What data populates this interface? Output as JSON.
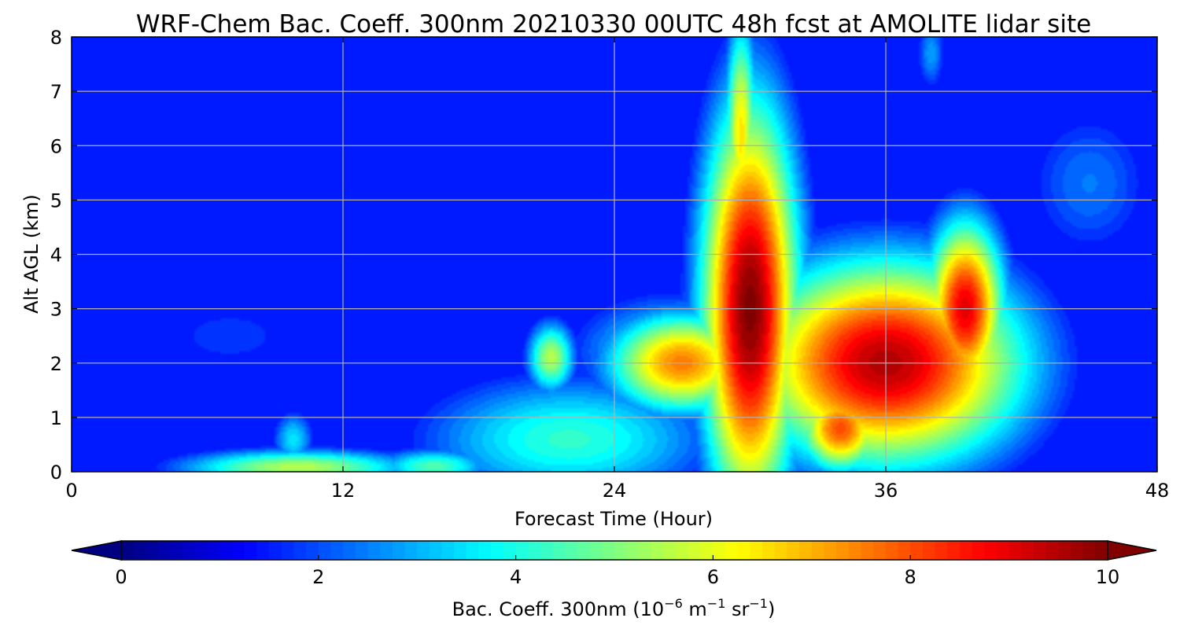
{
  "chart_data": {
    "type": "heatmap",
    "title": "WRF-Chem Bac. Coeff. 300nm  20210330 00UTC 48h fcst at AMOLITE lidar site",
    "xlabel": "Forecast Time (Hour)",
    "ylabel": "Alt AGL (km)",
    "xlim": [
      0,
      48
    ],
    "ylim": [
      0,
      8
    ],
    "x_ticks": [
      0,
      12,
      24,
      36,
      48
    ],
    "y_ticks": [
      0,
      1,
      2,
      3,
      4,
      5,
      6,
      7,
      8
    ],
    "grid": true,
    "colormap": "jet",
    "colorbar": {
      "label_main": "Bac. Coeff. 300nm  (10",
      "label_exp1": "−6",
      "label_mid": " m",
      "label_exp2": "−1",
      "label_mid2": " sr",
      "label_exp3": "−1",
      "label_end": ")",
      "vmin": 0,
      "vmax": 10,
      "ticks": [
        0,
        2,
        4,
        6,
        8,
        10
      ],
      "extend": "both",
      "orientation": "horizontal",
      "position": "bottom"
    },
    "features": [
      {
        "x": 30,
        "y": 3.0,
        "sx": 1.6,
        "sy": 2.8,
        "v": 10
      },
      {
        "x": 29.6,
        "y": 6.2,
        "sx": 0.55,
        "sy": 1.6,
        "v": 6.5
      },
      {
        "x": 29.5,
        "y": 7.4,
        "sx": 0.4,
        "sy": 0.35,
        "v": 3.0
      },
      {
        "x": 36,
        "y": 2.0,
        "sx": 4.5,
        "sy": 1.4,
        "v": 9.5
      },
      {
        "x": 39.5,
        "y": 3.0,
        "sx": 1.3,
        "sy": 1.2,
        "v": 9.0
      },
      {
        "x": 34,
        "y": 0.8,
        "sx": 1.4,
        "sy": 0.6,
        "v": 8.0
      },
      {
        "x": 27,
        "y": 2.0,
        "sx": 2.5,
        "sy": 0.7,
        "v": 7.5
      },
      {
        "x": 26.5,
        "y": 2.2,
        "sx": 3.2,
        "sy": 0.8,
        "v": 4.0
      },
      {
        "x": 21.2,
        "y": 2.1,
        "sx": 0.8,
        "sy": 0.5,
        "v": 5.5
      },
      {
        "x": 22,
        "y": 0.6,
        "sx": 5.0,
        "sy": 0.9,
        "v": 4.2
      },
      {
        "x": 10,
        "y": 0.08,
        "sx": 4.0,
        "sy": 0.25,
        "v": 5.5
      },
      {
        "x": 16,
        "y": 0.1,
        "sx": 2.0,
        "sy": 0.25,
        "v": 4.5
      },
      {
        "x": 9.8,
        "y": 0.6,
        "sx": 0.7,
        "sy": 0.4,
        "v": 3.5
      },
      {
        "x": 7,
        "y": 2.5,
        "sx": 3.5,
        "sy": 0.7,
        "v": 1.8
      },
      {
        "x": 2,
        "y": 2.0,
        "sx": 2.0,
        "sy": 0.7,
        "v": 1.0
      },
      {
        "x": 45,
        "y": 5.3,
        "sx": 2.4,
        "sy": 1.2,
        "v": 2.4
      },
      {
        "x": 38,
        "y": 7.7,
        "sx": 0.5,
        "sy": 0.55,
        "v": 2.8
      },
      {
        "x": 37,
        "y": 0.3,
        "sx": 4.0,
        "sy": 0.4,
        "v": 2.0
      }
    ],
    "background_value": 1.4
  }
}
